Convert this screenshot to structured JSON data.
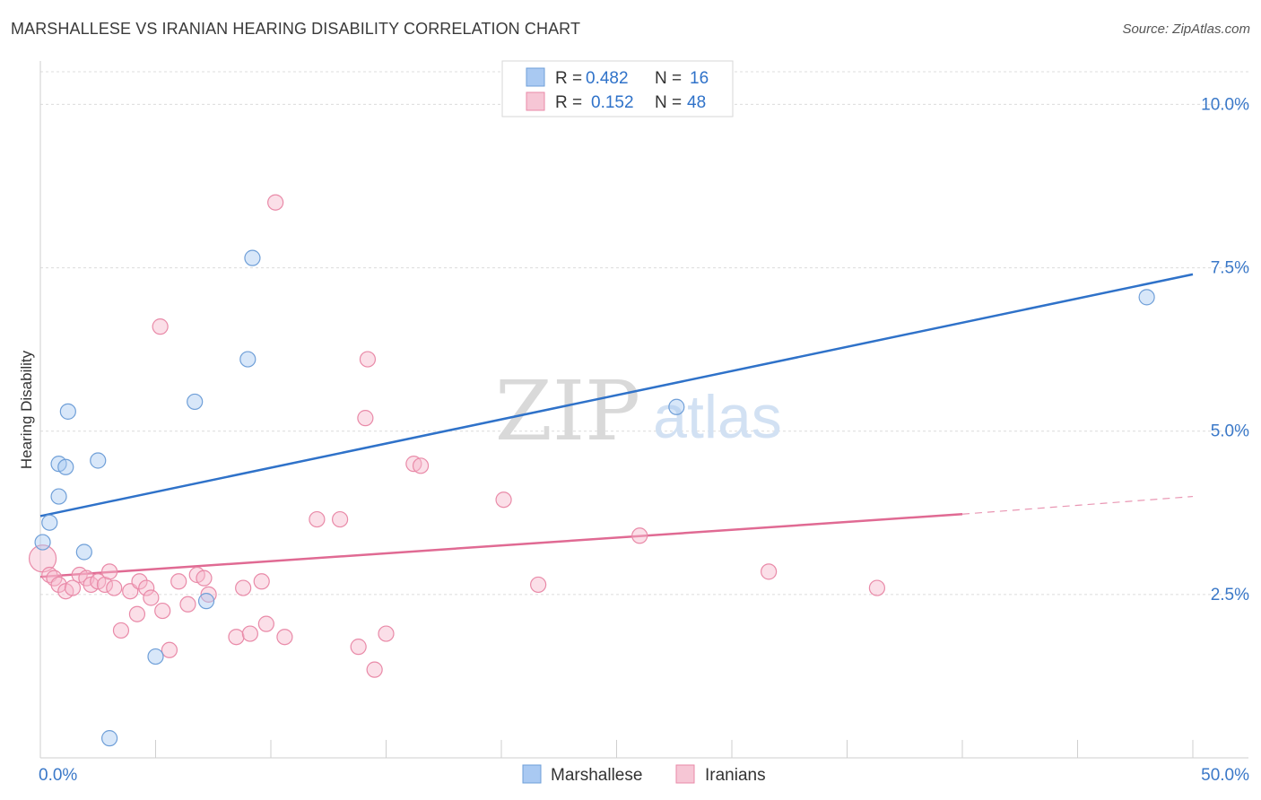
{
  "header": {
    "title": "MARSHALLESE VS IRANIAN HEARING DISABILITY CORRELATION CHART",
    "source": "Source: ZipAtlas.com"
  },
  "chart_data": {
    "type": "scatter",
    "ylabel": "Hearing Disability",
    "xlim": [
      0,
      50
    ],
    "ylim": [
      0,
      10.5
    ],
    "x_tick_labels": [
      {
        "x": 0,
        "label": "0.0%"
      },
      {
        "x": 50,
        "label": "50.0%"
      }
    ],
    "y_ticks": [
      {
        "y": 2.5,
        "label": "2.5%"
      },
      {
        "y": 5.0,
        "label": "5.0%"
      },
      {
        "y": 7.5,
        "label": "7.5%"
      },
      {
        "y": 10.0,
        "label": "10.0%"
      }
    ],
    "grid": true,
    "legend_position": "top-center",
    "watermark": {
      "zip": "ZIP",
      "atlas": "atlas"
    },
    "series": [
      {
        "name": "Marshallese",
        "color": "#a9c9f2",
        "stroke": "#6f9fd8",
        "line_color": "#2f72c9",
        "R": "0.482",
        "N": "16",
        "trend": {
          "x0": 0,
          "y0": 3.7,
          "x1": 50,
          "y1": 7.4
        },
        "points": [
          [
            0.1,
            3.3
          ],
          [
            0.4,
            3.6
          ],
          [
            0.8,
            4.0
          ],
          [
            0.8,
            4.5
          ],
          [
            1.1,
            4.45
          ],
          [
            1.2,
            5.3
          ],
          [
            1.9,
            3.15
          ],
          [
            2.5,
            4.55
          ],
          [
            3.0,
            0.3
          ],
          [
            5.0,
            1.55
          ],
          [
            6.7,
            5.45
          ],
          [
            7.2,
            2.4
          ],
          [
            9.0,
            6.1
          ],
          [
            9.2,
            7.65
          ],
          [
            27.6,
            5.37
          ],
          [
            48.0,
            7.05
          ]
        ]
      },
      {
        "name": "Iranians",
        "color": "#f6b9cc",
        "stroke": "#e98aa8",
        "line_color": "#e06a93",
        "R": "0.152",
        "N": "48",
        "trend": {
          "x0": 0,
          "y0": 2.77,
          "x1": 40,
          "y1": 3.73
        },
        "trend_dashed": {
          "x0": 40,
          "y0": 3.73,
          "x1": 50,
          "y1": 4.0
        },
        "points": [
          [
            0.1,
            3.05
          ],
          [
            0.4,
            2.8
          ],
          [
            0.6,
            2.75
          ],
          [
            0.8,
            2.65
          ],
          [
            1.1,
            2.55
          ],
          [
            1.4,
            2.6
          ],
          [
            1.7,
            2.8
          ],
          [
            2.0,
            2.75
          ],
          [
            2.2,
            2.65
          ],
          [
            2.5,
            2.7
          ],
          [
            2.8,
            2.65
          ],
          [
            3.0,
            2.85
          ],
          [
            3.2,
            2.6
          ],
          [
            3.5,
            1.95
          ],
          [
            3.9,
            2.55
          ],
          [
            4.2,
            2.2
          ],
          [
            4.3,
            2.7
          ],
          [
            4.6,
            2.6
          ],
          [
            4.8,
            2.45
          ],
          [
            5.3,
            2.25
          ],
          [
            5.6,
            1.65
          ],
          [
            6.0,
            2.7
          ],
          [
            6.4,
            2.35
          ],
          [
            6.8,
            2.8
          ],
          [
            7.1,
            2.75
          ],
          [
            7.3,
            2.5
          ],
          [
            8.5,
            1.85
          ],
          [
            8.8,
            2.6
          ],
          [
            9.1,
            1.9
          ],
          [
            9.6,
            2.7
          ],
          [
            9.8,
            2.05
          ],
          [
            10.2,
            8.5
          ],
          [
            10.6,
            1.85
          ],
          [
            5.2,
            6.6
          ],
          [
            12.0,
            3.65
          ],
          [
            13.0,
            3.65
          ],
          [
            13.8,
            1.7
          ],
          [
            14.1,
            5.2
          ],
          [
            14.2,
            6.1
          ],
          [
            14.5,
            1.35
          ],
          [
            15.0,
            1.9
          ],
          [
            16.2,
            4.5
          ],
          [
            16.5,
            4.47
          ],
          [
            20.1,
            3.95
          ],
          [
            21.6,
            2.65
          ],
          [
            26.0,
            3.4
          ],
          [
            31.6,
            2.85
          ],
          [
            36.3,
            2.6
          ]
        ]
      }
    ]
  }
}
